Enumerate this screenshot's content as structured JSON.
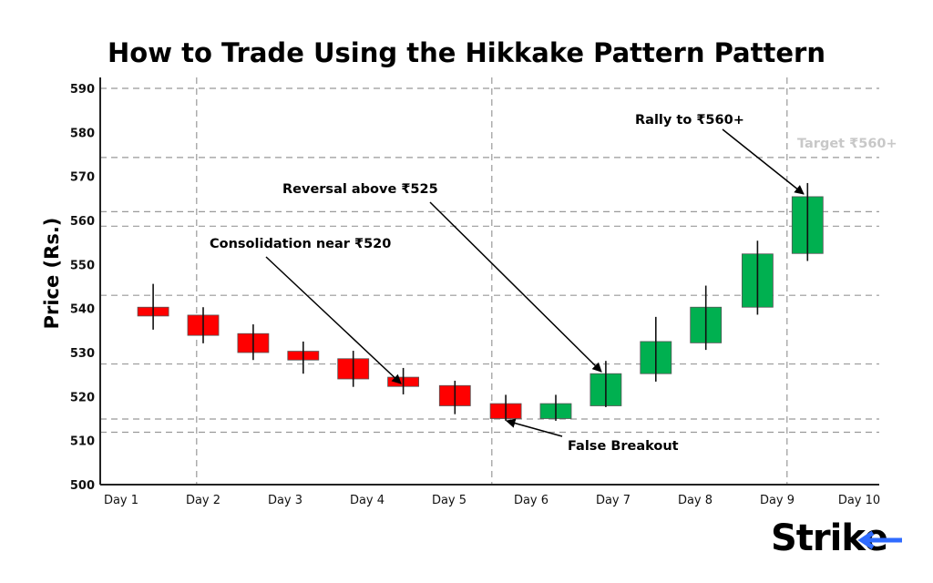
{
  "chart_data": {
    "type": "candlestick",
    "title": "How to Trade Using the Hikkake Pattern Pattern",
    "xlabel": "",
    "ylabel": "Price (Rs.)",
    "ylim": [
      500,
      590
    ],
    "yticks": [
      500,
      510,
      520,
      530,
      540,
      550,
      560,
      570,
      580,
      590
    ],
    "xticks": [
      "Day 1",
      "Day 2",
      "Day 3",
      "Day 4",
      "Day 5",
      "Day 6",
      "Day 7",
      "Day 8",
      "Day 9",
      "Day 10"
    ],
    "xlim_days": [
      1,
      10
    ],
    "candles": [
      {
        "x": 1.39,
        "open": 540.3,
        "close": 538.3,
        "high": 545.6,
        "low": 535.2
      },
      {
        "x": 2.0,
        "open": 538.5,
        "close": 533.9,
        "high": 540.3,
        "low": 532.1
      },
      {
        "x": 2.61,
        "open": 534.3,
        "close": 530.0,
        "high": 536.4,
        "low": 528.3
      },
      {
        "x": 3.22,
        "open": 530.3,
        "close": 528.3,
        "high": 532.5,
        "low": 525.2
      },
      {
        "x": 3.83,
        "open": 528.6,
        "close": 524.0,
        "high": 530.4,
        "low": 522.2
      },
      {
        "x": 4.44,
        "open": 524.4,
        "close": 522.3,
        "high": 526.5,
        "low": 520.5
      },
      {
        "x": 5.07,
        "open": 522.5,
        "close": 517.9,
        "high": 523.6,
        "low": 516.0
      },
      {
        "x": 5.69,
        "open": 518.4,
        "close": 515.0,
        "high": 520.4,
        "low": 514.5
      },
      {
        "x": 6.3,
        "open": 515.0,
        "close": 518.4,
        "high": 520.4,
        "low": 514.5
      },
      {
        "x": 6.91,
        "open": 517.9,
        "close": 525.2,
        "high": 528.1,
        "low": 517.6
      },
      {
        "x": 7.52,
        "open": 525.2,
        "close": 532.5,
        "high": 538.1,
        "low": 523.4
      },
      {
        "x": 8.13,
        "open": 532.2,
        "close": 540.3,
        "high": 545.2,
        "low": 530.6
      },
      {
        "x": 8.76,
        "open": 540.3,
        "close": 552.4,
        "high": 555.4,
        "low": 538.6
      },
      {
        "x": 9.37,
        "open": 552.5,
        "close": 565.4,
        "high": 568.5,
        "low": 550.8
      }
    ],
    "horizontal_levels": [
      590,
      574.3,
      562,
      558.7,
      543,
      527.4,
      514.9,
      511.9
    ],
    "vertical_levels_days": [
      1.92,
      5.52,
      9.12
    ],
    "colors": {
      "up": "#00b050",
      "down": "#ff0000",
      "grid": "#999999"
    },
    "annotations": [
      {
        "text": "Consolidation near ₹520",
        "points_to": {
          "x": 4.44,
          "y": 522.3
        }
      },
      {
        "text": "Reversal above ₹525",
        "points_to": {
          "x": 6.91,
          "y": 526.5
        }
      },
      {
        "text": "Rally to ₹560+",
        "points_to": {
          "x": 9.37,
          "y": 566
        }
      },
      {
        "text": "False Breakout",
        "points_to": {
          "x": 5.69,
          "y": 514.5
        }
      },
      {
        "text": "Target ₹560+"
      }
    ]
  },
  "brand": {
    "logo_text": "Strike",
    "accent": "#2f6bff"
  }
}
